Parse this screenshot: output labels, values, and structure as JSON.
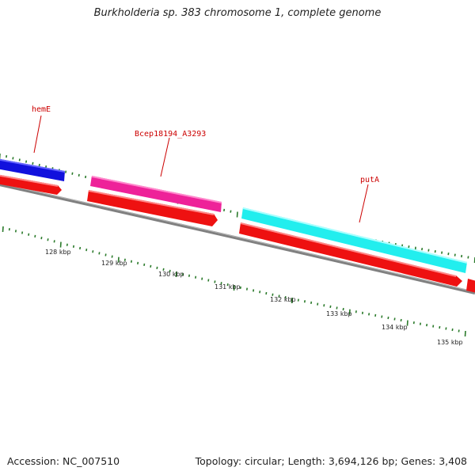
{
  "title": "Burkholderia sp. 383 chromosome 1, complete genome",
  "footer": {
    "accession": "Accession: NC_007510",
    "summary": "Topology: circular; Length: 3,694,126 bp; Genes: 3,408"
  },
  "colors": {
    "backbone": "#808080",
    "cds": "#ee1111",
    "tick": "#2a7a2a",
    "label": "#cc0000"
  },
  "features": [
    {
      "name": "hemE",
      "color": "#1111dd"
    },
    {
      "name": "Bcep18194_A3293",
      "color": "#ee2299"
    },
    {
      "name": "putA",
      "color": "#22eeee"
    }
  ],
  "scale_labels": [
    "128 kbp",
    "129 kbp",
    "130 kbp",
    "131 kbp",
    "132 kbp",
    "133 kbp",
    "134 kbp",
    "135 kbp"
  ]
}
